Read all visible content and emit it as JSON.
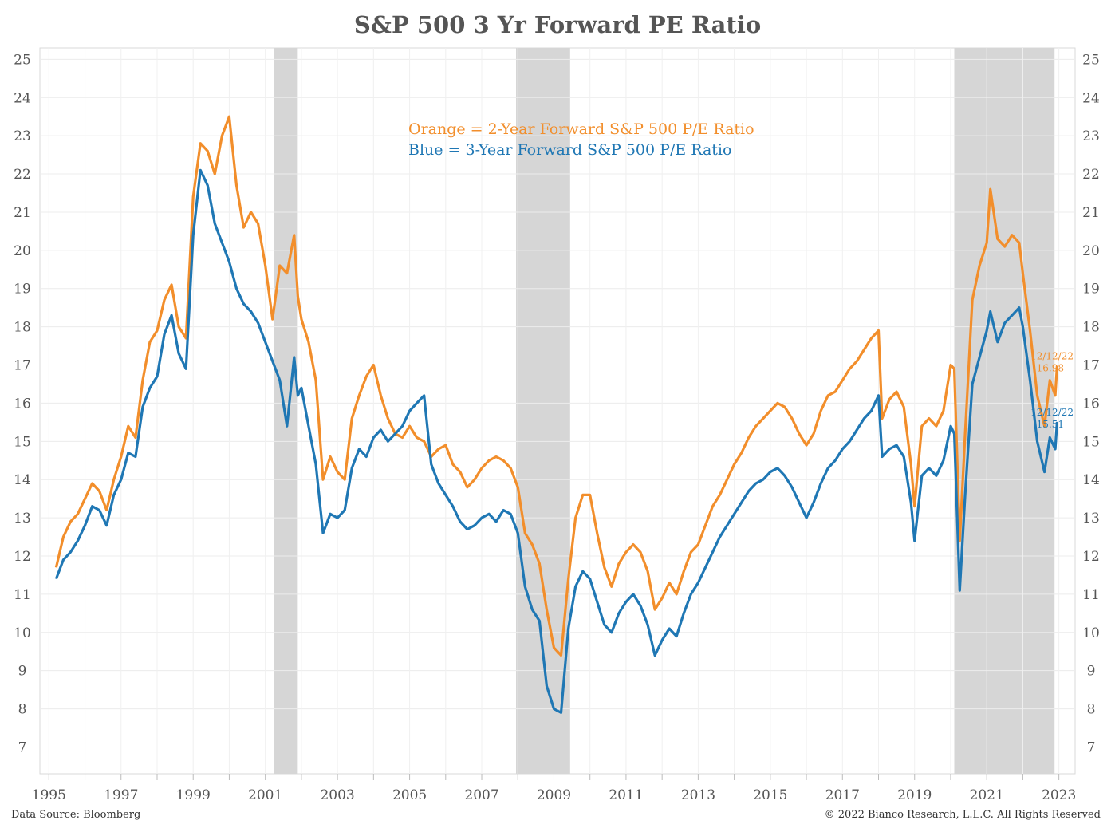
{
  "chart_data": {
    "type": "line",
    "title": "S&P 500 3 Yr Forward PE Ratio",
    "xlabel": "",
    "ylabel": "",
    "xlim": [
      1994.75,
      2023.45
    ],
    "ylim": [
      6.3,
      25.3
    ],
    "y_ticks": [
      7,
      8,
      9,
      10,
      11,
      12,
      13,
      14,
      15,
      16,
      17,
      18,
      19,
      20,
      21,
      22,
      23,
      24,
      25
    ],
    "x_ticks": [
      "1995",
      "1997",
      "1999",
      "2001",
      "2003",
      "2005",
      "2007",
      "2009",
      "2011",
      "2013",
      "2015",
      "2017",
      "2019",
      "2021",
      "2023"
    ],
    "grid": true,
    "recessions": [
      [
        2001.25,
        2001.9
      ],
      [
        2007.95,
        2009.45
      ],
      [
        2020.1,
        2022.88
      ]
    ],
    "legend": [
      "Orange = 2-Year Forward S&P 500 P/E Ratio",
      "Blue = 3-Year Forward S&P 500 P/E Ratio"
    ],
    "legend_placement": "top-center",
    "series": [
      {
        "color": "#F28E2B",
        "points": [
          [
            1995.2,
            11.7
          ],
          [
            1995.4,
            12.5
          ],
          [
            1995.6,
            12.9
          ],
          [
            1995.8,
            13.1
          ],
          [
            1996.0,
            13.5
          ],
          [
            1996.2,
            13.9
          ],
          [
            1996.4,
            13.7
          ],
          [
            1996.6,
            13.2
          ],
          [
            1996.8,
            14.0
          ],
          [
            1997.0,
            14.6
          ],
          [
            1997.2,
            15.4
          ],
          [
            1997.4,
            15.1
          ],
          [
            1997.6,
            16.6
          ],
          [
            1997.8,
            17.6
          ],
          [
            1998.0,
            17.9
          ],
          [
            1998.2,
            18.7
          ],
          [
            1998.4,
            19.1
          ],
          [
            1998.6,
            18.0
          ],
          [
            1998.8,
            17.7
          ],
          [
            1999.0,
            21.4
          ],
          [
            1999.2,
            22.8
          ],
          [
            1999.4,
            22.6
          ],
          [
            1999.6,
            22.0
          ],
          [
            1999.8,
            23.0
          ],
          [
            2000.0,
            23.5
          ],
          [
            2000.2,
            21.7
          ],
          [
            2000.4,
            20.6
          ],
          [
            2000.6,
            21.0
          ],
          [
            2000.8,
            20.7
          ],
          [
            2001.0,
            19.6
          ],
          [
            2001.2,
            18.2
          ],
          [
            2001.4,
            19.6
          ],
          [
            2001.6,
            19.4
          ],
          [
            2001.8,
            20.4
          ],
          [
            2001.9,
            18.8
          ],
          [
            2002.0,
            18.2
          ],
          [
            2002.2,
            17.6
          ],
          [
            2002.4,
            16.6
          ],
          [
            2002.6,
            14.0
          ],
          [
            2002.8,
            14.6
          ],
          [
            2003.0,
            14.2
          ],
          [
            2003.2,
            14.0
          ],
          [
            2003.4,
            15.6
          ],
          [
            2003.6,
            16.2
          ],
          [
            2003.8,
            16.7
          ],
          [
            2004.0,
            17.0
          ],
          [
            2004.2,
            16.2
          ],
          [
            2004.4,
            15.6
          ],
          [
            2004.6,
            15.2
          ],
          [
            2004.8,
            15.1
          ],
          [
            2005.0,
            15.4
          ],
          [
            2005.2,
            15.1
          ],
          [
            2005.4,
            15.0
          ],
          [
            2005.6,
            14.6
          ],
          [
            2005.8,
            14.8
          ],
          [
            2006.0,
            14.9
          ],
          [
            2006.2,
            14.4
          ],
          [
            2006.4,
            14.2
          ],
          [
            2006.6,
            13.8
          ],
          [
            2006.8,
            14.0
          ],
          [
            2007.0,
            14.3
          ],
          [
            2007.2,
            14.5
          ],
          [
            2007.4,
            14.6
          ],
          [
            2007.6,
            14.5
          ],
          [
            2007.8,
            14.3
          ],
          [
            2008.0,
            13.8
          ],
          [
            2008.2,
            12.6
          ],
          [
            2008.4,
            12.3
          ],
          [
            2008.6,
            11.8
          ],
          [
            2008.8,
            10.6
          ],
          [
            2009.0,
            9.6
          ],
          [
            2009.2,
            9.4
          ],
          [
            2009.4,
            11.4
          ],
          [
            2009.6,
            13.0
          ],
          [
            2009.8,
            13.6
          ],
          [
            2010.0,
            13.6
          ],
          [
            2010.2,
            12.6
          ],
          [
            2010.4,
            11.7
          ],
          [
            2010.6,
            11.2
          ],
          [
            2010.8,
            11.8
          ],
          [
            2011.0,
            12.1
          ],
          [
            2011.2,
            12.3
          ],
          [
            2011.4,
            12.1
          ],
          [
            2011.6,
            11.6
          ],
          [
            2011.8,
            10.6
          ],
          [
            2012.0,
            10.9
          ],
          [
            2012.2,
            11.3
          ],
          [
            2012.4,
            11.0
          ],
          [
            2012.6,
            11.6
          ],
          [
            2012.8,
            12.1
          ],
          [
            2013.0,
            12.3
          ],
          [
            2013.2,
            12.8
          ],
          [
            2013.4,
            13.3
          ],
          [
            2013.6,
            13.6
          ],
          [
            2013.8,
            14.0
          ],
          [
            2014.0,
            14.4
          ],
          [
            2014.2,
            14.7
          ],
          [
            2014.4,
            15.1
          ],
          [
            2014.6,
            15.4
          ],
          [
            2014.8,
            15.6
          ],
          [
            2015.0,
            15.8
          ],
          [
            2015.2,
            16.0
          ],
          [
            2015.4,
            15.9
          ],
          [
            2015.6,
            15.6
          ],
          [
            2015.8,
            15.2
          ],
          [
            2016.0,
            14.9
          ],
          [
            2016.2,
            15.2
          ],
          [
            2016.4,
            15.8
          ],
          [
            2016.6,
            16.2
          ],
          [
            2016.8,
            16.3
          ],
          [
            2017.0,
            16.6
          ],
          [
            2017.2,
            16.9
          ],
          [
            2017.4,
            17.1
          ],
          [
            2017.6,
            17.4
          ],
          [
            2017.8,
            17.7
          ],
          [
            2018.0,
            17.9
          ],
          [
            2018.1,
            15.6
          ],
          [
            2018.3,
            16.1
          ],
          [
            2018.5,
            16.3
          ],
          [
            2018.7,
            15.9
          ],
          [
            2018.9,
            14.4
          ],
          [
            2019.0,
            13.3
          ],
          [
            2019.2,
            15.4
          ],
          [
            2019.4,
            15.6
          ],
          [
            2019.6,
            15.4
          ],
          [
            2019.8,
            15.8
          ],
          [
            2020.0,
            17.0
          ],
          [
            2020.1,
            16.9
          ],
          [
            2020.25,
            12.4
          ],
          [
            2020.4,
            15.2
          ],
          [
            2020.6,
            18.7
          ],
          [
            2020.8,
            19.6
          ],
          [
            2021.0,
            20.2
          ],
          [
            2021.1,
            21.6
          ],
          [
            2021.3,
            20.3
          ],
          [
            2021.5,
            20.1
          ],
          [
            2021.7,
            20.4
          ],
          [
            2021.9,
            20.2
          ],
          [
            2022.0,
            19.4
          ],
          [
            2022.2,
            17.9
          ],
          [
            2022.4,
            16.2
          ],
          [
            2022.6,
            15.4
          ],
          [
            2022.75,
            16.6
          ],
          [
            2022.9,
            16.2
          ],
          [
            2022.95,
            16.98
          ]
        ]
      },
      {
        "color": "#1F77B4",
        "points": [
          [
            1995.2,
            11.4
          ],
          [
            1995.4,
            11.9
          ],
          [
            1995.6,
            12.1
          ],
          [
            1995.8,
            12.4
          ],
          [
            1996.0,
            12.8
          ],
          [
            1996.2,
            13.3
          ],
          [
            1996.4,
            13.2
          ],
          [
            1996.6,
            12.8
          ],
          [
            1996.8,
            13.6
          ],
          [
            1997.0,
            14.0
          ],
          [
            1997.2,
            14.7
          ],
          [
            1997.4,
            14.6
          ],
          [
            1997.6,
            15.9
          ],
          [
            1997.8,
            16.4
          ],
          [
            1998.0,
            16.7
          ],
          [
            1998.2,
            17.8
          ],
          [
            1998.4,
            18.3
          ],
          [
            1998.6,
            17.3
          ],
          [
            1998.8,
            16.9
          ],
          [
            1999.0,
            20.4
          ],
          [
            1999.2,
            22.1
          ],
          [
            1999.4,
            21.7
          ],
          [
            1999.6,
            20.7
          ],
          [
            1999.8,
            20.2
          ],
          [
            2000.0,
            19.7
          ],
          [
            2000.2,
            19.0
          ],
          [
            2000.4,
            18.6
          ],
          [
            2000.6,
            18.4
          ],
          [
            2000.8,
            18.1
          ],
          [
            2001.0,
            17.6
          ],
          [
            2001.2,
            17.1
          ],
          [
            2001.4,
            16.6
          ],
          [
            2001.6,
            15.4
          ],
          [
            2001.8,
            17.2
          ],
          [
            2001.9,
            16.2
          ],
          [
            2002.0,
            16.4
          ],
          [
            2002.2,
            15.4
          ],
          [
            2002.4,
            14.4
          ],
          [
            2002.6,
            12.6
          ],
          [
            2002.8,
            13.1
          ],
          [
            2003.0,
            13.0
          ],
          [
            2003.2,
            13.2
          ],
          [
            2003.4,
            14.3
          ],
          [
            2003.6,
            14.8
          ],
          [
            2003.8,
            14.6
          ],
          [
            2004.0,
            15.1
          ],
          [
            2004.2,
            15.3
          ],
          [
            2004.4,
            15.0
          ],
          [
            2004.6,
            15.2
          ],
          [
            2004.8,
            15.4
          ],
          [
            2005.0,
            15.8
          ],
          [
            2005.2,
            16.0
          ],
          [
            2005.4,
            16.2
          ],
          [
            2005.6,
            14.4
          ],
          [
            2005.8,
            13.9
          ],
          [
            2006.0,
            13.6
          ],
          [
            2006.2,
            13.3
          ],
          [
            2006.4,
            12.9
          ],
          [
            2006.6,
            12.7
          ],
          [
            2006.8,
            12.8
          ],
          [
            2007.0,
            13.0
          ],
          [
            2007.2,
            13.1
          ],
          [
            2007.4,
            12.9
          ],
          [
            2007.6,
            13.2
          ],
          [
            2007.8,
            13.1
          ],
          [
            2008.0,
            12.6
          ],
          [
            2008.2,
            11.2
          ],
          [
            2008.4,
            10.6
          ],
          [
            2008.6,
            10.3
          ],
          [
            2008.8,
            8.6
          ],
          [
            2009.0,
            8.0
          ],
          [
            2009.2,
            7.9
          ],
          [
            2009.4,
            10.1
          ],
          [
            2009.6,
            11.2
          ],
          [
            2009.8,
            11.6
          ],
          [
            2010.0,
            11.4
          ],
          [
            2010.2,
            10.8
          ],
          [
            2010.4,
            10.2
          ],
          [
            2010.6,
            10.0
          ],
          [
            2010.8,
            10.5
          ],
          [
            2011.0,
            10.8
          ],
          [
            2011.2,
            11.0
          ],
          [
            2011.4,
            10.7
          ],
          [
            2011.6,
            10.2
          ],
          [
            2011.8,
            9.4
          ],
          [
            2012.0,
            9.8
          ],
          [
            2012.2,
            10.1
          ],
          [
            2012.4,
            9.9
          ],
          [
            2012.6,
            10.5
          ],
          [
            2012.8,
            11.0
          ],
          [
            2013.0,
            11.3
          ],
          [
            2013.2,
            11.7
          ],
          [
            2013.4,
            12.1
          ],
          [
            2013.6,
            12.5
          ],
          [
            2013.8,
            12.8
          ],
          [
            2014.0,
            13.1
          ],
          [
            2014.2,
            13.4
          ],
          [
            2014.4,
            13.7
          ],
          [
            2014.6,
            13.9
          ],
          [
            2014.8,
            14.0
          ],
          [
            2015.0,
            14.2
          ],
          [
            2015.2,
            14.3
          ],
          [
            2015.4,
            14.1
          ],
          [
            2015.6,
            13.8
          ],
          [
            2015.8,
            13.4
          ],
          [
            2016.0,
            13.0
          ],
          [
            2016.2,
            13.4
          ],
          [
            2016.4,
            13.9
          ],
          [
            2016.6,
            14.3
          ],
          [
            2016.8,
            14.5
          ],
          [
            2017.0,
            14.8
          ],
          [
            2017.2,
            15.0
          ],
          [
            2017.4,
            15.3
          ],
          [
            2017.6,
            15.6
          ],
          [
            2017.8,
            15.8
          ],
          [
            2018.0,
            16.2
          ],
          [
            2018.1,
            14.6
          ],
          [
            2018.3,
            14.8
          ],
          [
            2018.5,
            14.9
          ],
          [
            2018.7,
            14.6
          ],
          [
            2018.9,
            13.4
          ],
          [
            2019.0,
            12.4
          ],
          [
            2019.2,
            14.1
          ],
          [
            2019.4,
            14.3
          ],
          [
            2019.6,
            14.1
          ],
          [
            2019.8,
            14.5
          ],
          [
            2020.0,
            15.4
          ],
          [
            2020.1,
            15.2
          ],
          [
            2020.25,
            11.1
          ],
          [
            2020.4,
            13.6
          ],
          [
            2020.6,
            16.5
          ],
          [
            2020.8,
            17.2
          ],
          [
            2021.0,
            17.9
          ],
          [
            2021.1,
            18.4
          ],
          [
            2021.3,
            17.6
          ],
          [
            2021.5,
            18.1
          ],
          [
            2021.7,
            18.3
          ],
          [
            2021.9,
            18.5
          ],
          [
            2022.0,
            18.0
          ],
          [
            2022.2,
            16.6
          ],
          [
            2022.4,
            15.0
          ],
          [
            2022.6,
            14.2
          ],
          [
            2022.75,
            15.1
          ],
          [
            2022.9,
            14.8
          ],
          [
            2022.95,
            15.51
          ]
        ]
      }
    ],
    "end_labels": [
      {
        "date": "12/12/22",
        "value": "16.98",
        "color": "#F28E2B"
      },
      {
        "date": "12/12/22",
        "value": "15.51",
        "color": "#1F77B4"
      }
    ],
    "footer_left": "Data Source: Bloomberg",
    "footer_right": "© 2022 Bianco Research, L.L.C. All Rights Reserved"
  }
}
